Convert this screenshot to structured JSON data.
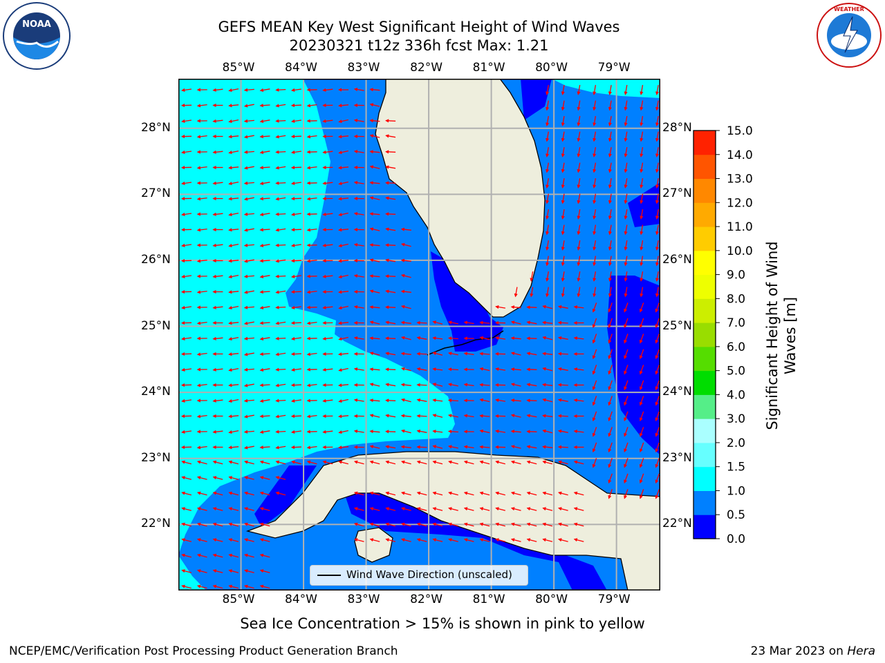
{
  "title": {
    "line1": "GEFS MEAN Key West Significant Height of Wind Waves",
    "line2": "20230321 t12z 336h fcst   Max: 1.21"
  },
  "logos": {
    "left": {
      "name": "noaa-logo",
      "text": "NOAA"
    },
    "right": {
      "name": "nws-logo",
      "text": "NATIONAL WEATHER SERVICE"
    }
  },
  "map": {
    "lon_ticks": [
      "85°W",
      "84°W",
      "83°W",
      "82°W",
      "81°W",
      "80°W",
      "79°W"
    ],
    "lat_ticks": [
      "28°N",
      "27°N",
      "26°N",
      "25°N",
      "24°N",
      "23°N",
      "22°N"
    ],
    "lon_range": [
      -86.0,
      -78.3
    ],
    "lat_range": [
      21.0,
      28.75
    ]
  },
  "legend": {
    "label": "Wind Wave Direction (unscaled)"
  },
  "colorbar": {
    "label": "Significant Height of Wind Waves [m]",
    "ticks": [
      "0.0",
      "0.5",
      "1.0",
      "1.5",
      "2.0",
      "3.0",
      "4.0",
      "5.0",
      "6.0",
      "7.0",
      "8.0",
      "9.0",
      "10.0",
      "11.0",
      "12.0",
      "13.0",
      "14.0",
      "15.0"
    ],
    "colors": [
      "#0000ff",
      "#0080ff",
      "#00ffff",
      "#66ffff",
      "#aaffff",
      "#55ee88",
      "#00dd00",
      "#55dd00",
      "#99dd00",
      "#ccee00",
      "#eeff00",
      "#ffff00",
      "#ffcc00",
      "#ffaa00",
      "#ff8800",
      "#ff5500",
      "#ff2200",
      "#ff0000"
    ]
  },
  "colors": {
    "land": "#eeeedd",
    "arrow": "#ff0000",
    "grid": "#b0b0b0"
  },
  "note": "Sea Ice Concentration > 15% is shown in pink to yellow",
  "footer": {
    "left": "NCEP/EMC/Verification Post Processing Product Generation Branch",
    "right_date": "23 Mar 2023 on ",
    "right_host": "Hera"
  }
}
